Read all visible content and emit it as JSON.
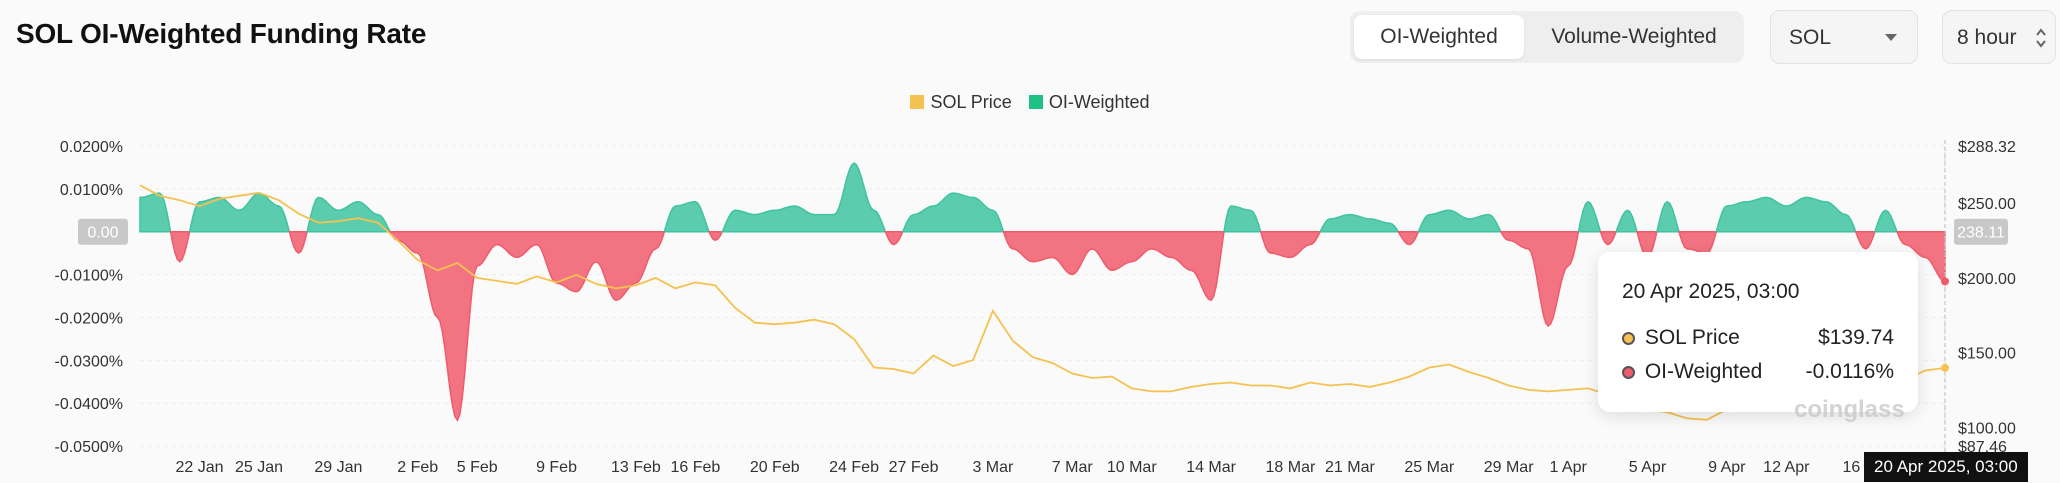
{
  "header": {
    "title": "SOL OI-Weighted Funding Rate",
    "toggle": [
      "OI-Weighted",
      "Volume-Weighted"
    ],
    "coin_select": "SOL",
    "interval_select": "8 hour"
  },
  "colors": {
    "price": "#f5c151",
    "positive": "#3fc3a0",
    "negative": "#f05b6b",
    "zero_badge": "#c8c8c8"
  },
  "chart_data": {
    "type": "area",
    "legend": [
      "SOL Price",
      "OI-Weighted"
    ],
    "x_ticks": [
      "22 Jan",
      "25 Jan",
      "29 Jan",
      "2 Feb",
      "5 Feb",
      "9 Feb",
      "13 Feb",
      "16 Feb",
      "20 Feb",
      "24 Feb",
      "27 Feb",
      "3 Mar",
      "7 Mar",
      "10 Mar",
      "14 Mar",
      "18 Mar",
      "21 Mar",
      "25 Mar",
      "29 Mar",
      "1 Apr",
      "5 Apr",
      "9 Apr",
      "12 Apr",
      "16 Apr"
    ],
    "y_left_ticks": [
      "0.0200%",
      "0.0100%",
      "0.00",
      "-0.0100%",
      "-0.0200%",
      "-0.0300%",
      "-0.0400%",
      "-0.0500%"
    ],
    "y_left_range": [
      -0.05,
      0.02
    ],
    "y_right_ticks": [
      "$288.32",
      "$250.00",
      "238.11",
      "$200.00",
      "$150.00",
      "$100.00",
      "$87.46"
    ],
    "y_right_range": [
      87.46,
      288.32
    ],
    "series": [
      {
        "name": "SOL Price",
        "axis": "right",
        "x": [
          "19 Jan",
          "20 Jan",
          "21 Jan",
          "22 Jan",
          "23 Jan",
          "24 Jan",
          "25 Jan",
          "26 Jan",
          "27 Jan",
          "28 Jan",
          "29 Jan",
          "30 Jan",
          "31 Jan",
          "1 Feb",
          "2 Feb",
          "3 Feb",
          "4 Feb",
          "5 Feb",
          "6 Feb",
          "7 Feb",
          "8 Feb",
          "9 Feb",
          "10 Feb",
          "11 Feb",
          "12 Feb",
          "13 Feb",
          "14 Feb",
          "15 Feb",
          "16 Feb",
          "17 Feb",
          "18 Feb",
          "19 Feb",
          "20 Feb",
          "21 Feb",
          "22 Feb",
          "23 Feb",
          "24 Feb",
          "25 Feb",
          "26 Feb",
          "27 Feb",
          "28 Feb",
          "1 Mar",
          "2 Mar",
          "3 Mar",
          "4 Mar",
          "5 Mar",
          "6 Mar",
          "7 Mar",
          "8 Mar",
          "9 Mar",
          "10 Mar",
          "11 Mar",
          "12 Mar",
          "13 Mar",
          "14 Mar",
          "15 Mar",
          "16 Mar",
          "17 Mar",
          "18 Mar",
          "19 Mar",
          "20 Mar",
          "21 Mar",
          "22 Mar",
          "23 Mar",
          "24 Mar",
          "25 Mar",
          "26 Mar",
          "27 Mar",
          "28 Mar",
          "29 Mar",
          "30 Mar",
          "31 Mar",
          "1 Apr",
          "2 Apr",
          "3 Apr",
          "4 Apr",
          "5 Apr",
          "6 Apr",
          "7 Apr",
          "8 Apr",
          "9 Apr",
          "10 Apr",
          "11 Apr",
          "12 Apr",
          "13 Apr",
          "14 Apr",
          "15 Apr",
          "16 Apr",
          "17 Apr",
          "18 Apr",
          "19 Apr",
          "20 Apr"
        ],
        "values": [
          262,
          255,
          252,
          248,
          253,
          255,
          257,
          252,
          243,
          237,
          238,
          240,
          237,
          225,
          212,
          205,
          210,
          200,
          198,
          196,
          201,
          197,
          202,
          196,
          193,
          195,
          200,
          193,
          197,
          195,
          180,
          170,
          169,
          170,
          172,
          169,
          159,
          140,
          139,
          136,
          148,
          141,
          145,
          178,
          158,
          147,
          143,
          136,
          133,
          134,
          126,
          124,
          124,
          127,
          129,
          130,
          128,
          128,
          126,
          130,
          128,
          129,
          127,
          130,
          134,
          140,
          142,
          137,
          133,
          128,
          125,
          124,
          125,
          126,
          122,
          118,
          112,
          110,
          106,
          105,
          112,
          116,
          119,
          124,
          127,
          126,
          125,
          124,
          126,
          132,
          138,
          139.74
        ]
      },
      {
        "name": "OI-Weighted",
        "axis": "left",
        "x": [
          "19 Jan",
          "20 Jan",
          "21 Jan",
          "22 Jan",
          "23 Jan",
          "24 Jan",
          "25 Jan",
          "26 Jan",
          "27 Jan",
          "28 Jan",
          "29 Jan",
          "30 Jan",
          "31 Jan",
          "1 Feb",
          "2 Feb",
          "3 Feb",
          "4 Feb",
          "5 Feb",
          "6 Feb",
          "7 Feb",
          "8 Feb",
          "9 Feb",
          "10 Feb",
          "11 Feb",
          "12 Feb",
          "13 Feb",
          "14 Feb",
          "15 Feb",
          "16 Feb",
          "17 Feb",
          "18 Feb",
          "19 Feb",
          "20 Feb",
          "21 Feb",
          "22 Feb",
          "23 Feb",
          "24 Feb",
          "25 Feb",
          "26 Feb",
          "27 Feb",
          "28 Feb",
          "1 Mar",
          "2 Mar",
          "3 Mar",
          "4 Mar",
          "5 Mar",
          "6 Mar",
          "7 Mar",
          "8 Mar",
          "9 Mar",
          "10 Mar",
          "11 Mar",
          "12 Mar",
          "13 Mar",
          "14 Mar",
          "15 Mar",
          "16 Mar",
          "17 Mar",
          "18 Mar",
          "19 Mar",
          "20 Mar",
          "21 Mar",
          "22 Mar",
          "23 Mar",
          "24 Mar",
          "25 Mar",
          "26 Mar",
          "27 Mar",
          "28 Mar",
          "29 Mar",
          "30 Mar",
          "31 Mar",
          "1 Apr",
          "2 Apr",
          "3 Apr",
          "4 Apr",
          "5 Apr",
          "6 Apr",
          "7 Apr",
          "8 Apr",
          "9 Apr",
          "10 Apr",
          "11 Apr",
          "12 Apr",
          "13 Apr",
          "14 Apr",
          "15 Apr",
          "16 Apr",
          "17 Apr",
          "18 Apr",
          "19 Apr",
          "20 Apr"
        ],
        "values": [
          0.008,
          0.009,
          -0.007,
          0.007,
          0.008,
          0.005,
          0.009,
          0.006,
          -0.005,
          0.008,
          0.005,
          0.007,
          0.004,
          -0.002,
          -0.005,
          -0.02,
          -0.044,
          -0.008,
          -0.003,
          -0.006,
          -0.003,
          -0.012,
          -0.014,
          -0.007,
          -0.016,
          -0.012,
          -0.004,
          0.006,
          0.007,
          -0.002,
          0.005,
          0.004,
          0.005,
          0.006,
          0.004,
          0.004,
          0.016,
          0.005,
          -0.003,
          0.004,
          0.006,
          0.009,
          0.008,
          0.005,
          -0.004,
          -0.007,
          -0.006,
          -0.01,
          -0.004,
          -0.009,
          -0.007,
          -0.004,
          -0.006,
          -0.009,
          -0.016,
          0.006,
          0.005,
          -0.005,
          -0.006,
          -0.003,
          0.003,
          0.004,
          0.003,
          0.002,
          -0.003,
          0.004,
          0.005,
          0.003,
          0.004,
          -0.002,
          -0.004,
          -0.022,
          -0.008,
          0.007,
          -0.003,
          0.005,
          -0.006,
          0.007,
          -0.004,
          -0.005,
          0.006,
          0.007,
          0.008,
          0.006,
          0.008,
          0.007,
          0.004,
          -0.004,
          0.005,
          -0.003,
          -0.006,
          -0.0116
        ]
      }
    ],
    "tooltip": {
      "date": "20 Apr 2025, 03:00",
      "rows": [
        {
          "label": "SOL Price",
          "value": "$139.74"
        },
        {
          "label": "OI-Weighted",
          "value": "-0.0116%"
        }
      ]
    },
    "crosshair_label": "20 Apr 2025, 03:00",
    "watermark": "coinglass"
  }
}
